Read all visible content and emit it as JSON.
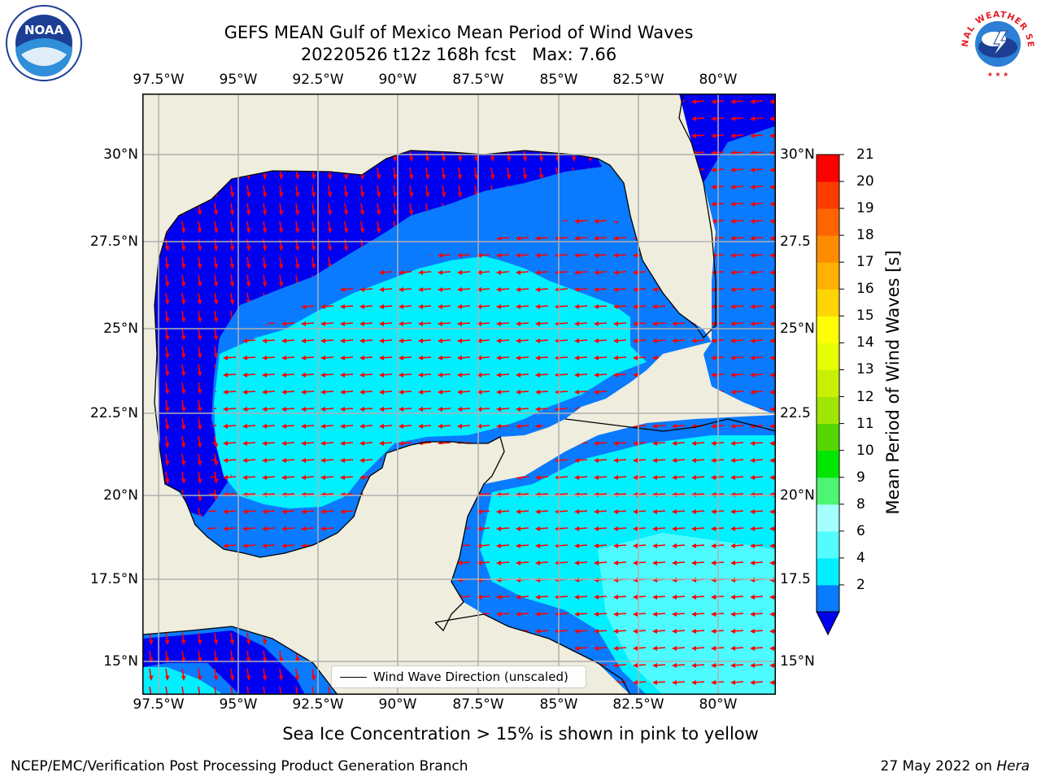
{
  "header": {
    "title_line1": "GEFS MEAN Gulf of Mexico Mean Period of Wind Waves",
    "title_line2_part1": "20220526 t12z 168h fcst",
    "title_line2_part2": "Max: 7.66"
  },
  "logos": {
    "noaa_text": "NOAA",
    "nws_text": "NATIONAL WEATHER SERVICE"
  },
  "map": {
    "lon_ticks": [
      "97.5°W",
      "95°W",
      "92.5°W",
      "90°W",
      "87.5°W",
      "85°W",
      "82.5°W",
      "80°W"
    ],
    "lat_ticks": [
      "30°N",
      "27.5°N",
      "25°N",
      "22.5°N",
      "20°N",
      "17.5°N",
      "15°N"
    ],
    "lat_ticks_right": [
      "30°N",
      "27.5",
      "25°N",
      "22.5",
      "20°N",
      "17.5",
      "15°N"
    ],
    "legend_label": "Wind Wave Direction (unscaled)",
    "colors": {
      "land": "#efedde",
      "ocean_2_4": "#0a7afe",
      "ocean_lt2": "#0000f0",
      "ocean_4_6": "#00f0ff",
      "ocean_6_8": "#55fcff",
      "arrow": "#ff0000"
    }
  },
  "colorbar": {
    "title": "Mean Period of Wind Waves [s]",
    "ticks": [
      "21",
      "20",
      "19",
      "18",
      "17",
      "16",
      "15",
      "14",
      "13",
      "12",
      "11",
      "10",
      "9",
      "8",
      "6",
      "4",
      "2"
    ],
    "bands": [
      "#0a7afe",
      "#00f0ff",
      "#55fcff",
      "#a5ffff",
      "#4df573",
      "#00e600",
      "#56d600",
      "#a1e600",
      "#c8f000",
      "#e6ff00",
      "#ffff00",
      "#ffd400",
      "#ffb000",
      "#ff8c00",
      "#ff6400",
      "#ff3c00",
      "#ff0000"
    ],
    "under_color": "#0000f0"
  },
  "footer": {
    "note": "Sea Ice Concentration > 15% is shown in pink to yellow",
    "credit": "NCEP/EMC/Verification Post Processing Product Generation Branch",
    "date": "27 May 2022 on",
    "machine": "Hera"
  }
}
